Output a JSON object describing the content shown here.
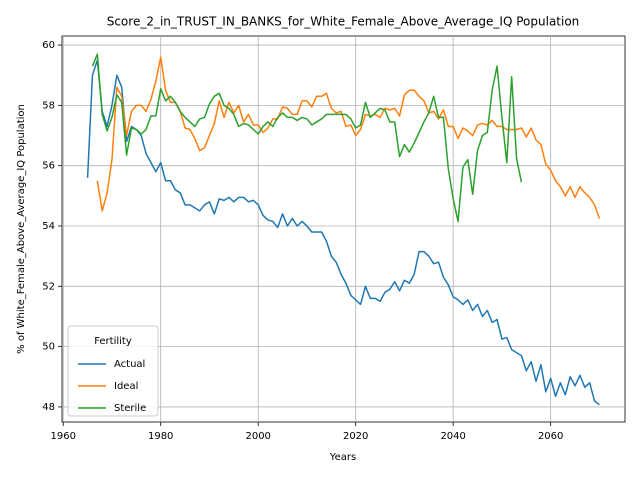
{
  "chart_data": {
    "type": "line",
    "title": "Score_2_in_TRUST_IN_BANKS_for_White_Female_Above_Average_IQ Population",
    "xlabel": "Years",
    "ylabel": "% of White_Female_Above_Average_IQ Population",
    "legend_title": "Fertility",
    "legend_loc": "lower left",
    "grid": true,
    "xlim": [
      1959.75,
      2075.25
    ],
    "xticks": [
      1960,
      1980,
      2000,
      2020,
      2040,
      2060
    ],
    "ylim": [
      47.5,
      60.3
    ],
    "yticks": [
      48,
      50,
      52,
      54,
      56,
      58,
      60
    ],
    "x": [
      1965,
      1966,
      1967,
      1968,
      1969,
      1970,
      1971,
      1972,
      1973,
      1974,
      1975,
      1976,
      1977,
      1978,
      1979,
      1980,
      1981,
      1982,
      1983,
      1984,
      1985,
      1986,
      1987,
      1988,
      1989,
      1990,
      1991,
      1992,
      1993,
      1994,
      1995,
      1996,
      1997,
      1998,
      1999,
      2000,
      2001,
      2002,
      2003,
      2004,
      2005,
      2006,
      2007,
      2008,
      2009,
      2010,
      2011,
      2012,
      2013,
      2014,
      2015,
      2016,
      2017,
      2018,
      2019,
      2020,
      2021,
      2022,
      2023,
      2024,
      2025,
      2026,
      2027,
      2028,
      2029,
      2030,
      2031,
      2032,
      2033,
      2034,
      2035,
      2036,
      2037,
      2038,
      2039,
      2040,
      2041,
      2042,
      2043,
      2044,
      2045,
      2046,
      2047,
      2048,
      2049,
      2050,
      2051,
      2052,
      2053,
      2054,
      2055,
      2056,
      2057,
      2058,
      2059,
      2060,
      2061,
      2062,
      2063,
      2064,
      2065,
      2066,
      2067,
      2068,
      2069,
      2070
    ],
    "series": [
      {
        "name": "Actual",
        "color": "#1f77b4",
        "values": [
          55.6,
          59.0,
          59.5,
          57.8,
          57.3,
          58.0,
          59.0,
          58.6,
          56.8,
          57.3,
          57.2,
          57.0,
          56.4,
          56.1,
          55.8,
          56.1,
          55.5,
          55.5,
          55.2,
          55.1,
          54.7,
          54.7,
          54.6,
          54.5,
          54.7,
          54.8,
          54.4,
          54.9,
          54.85,
          54.95,
          54.8,
          54.95,
          54.95,
          54.8,
          54.85,
          54.7,
          54.35,
          54.2,
          54.15,
          53.95,
          54.4,
          54.0,
          54.25,
          54.0,
          54.15,
          54.0,
          53.8,
          53.8,
          53.8,
          53.5,
          53.0,
          52.8,
          52.4,
          52.1,
          51.7,
          51.55,
          51.4,
          52.0,
          51.6,
          51.6,
          51.5,
          51.8,
          51.9,
          52.15,
          51.85,
          52.2,
          52.1,
          52.4,
          53.15,
          53.15,
          53.0,
          52.75,
          52.8,
          52.3,
          52.05,
          51.65,
          51.55,
          51.4,
          51.55,
          51.2,
          51.4,
          51.0,
          51.2,
          50.8,
          50.9,
          50.25,
          50.3,
          49.9,
          49.8,
          49.7,
          49.2,
          49.5,
          48.85,
          49.4,
          48.5,
          48.95,
          48.35,
          48.8,
          48.4,
          49.0,
          48.7,
          49.05,
          48.65,
          48.8,
          48.2,
          48.07
        ]
      },
      {
        "name": "Ideal",
        "color": "#ff7f0e",
        "values": [
          null,
          null,
          55.5,
          54.5,
          55.1,
          56.2,
          58.6,
          58.3,
          57.0,
          57.8,
          58.0,
          58.0,
          57.8,
          58.2,
          58.8,
          59.6,
          58.5,
          58.1,
          58.1,
          57.8,
          57.25,
          57.2,
          56.9,
          56.5,
          56.6,
          57.0,
          57.4,
          58.15,
          57.6,
          58.1,
          57.75,
          58.0,
          57.45,
          57.7,
          57.35,
          57.35,
          57.1,
          57.25,
          57.55,
          57.55,
          57.95,
          57.9,
          57.7,
          57.7,
          58.15,
          58.15,
          57.95,
          58.3,
          58.3,
          58.4,
          57.9,
          57.75,
          57.8,
          57.3,
          57.35,
          57.0,
          57.2,
          57.7,
          57.65,
          57.7,
          57.6,
          57.9,
          57.85,
          57.9,
          57.65,
          58.35,
          58.5,
          58.5,
          58.3,
          58.15,
          57.75,
          57.8,
          57.55,
          57.85,
          57.3,
          57.3,
          56.9,
          57.25,
          57.15,
          57.0,
          57.35,
          57.4,
          57.35,
          57.5,
          57.3,
          57.3,
          57.2,
          57.2,
          57.2,
          57.25,
          56.95,
          57.25,
          56.85,
          56.7,
          56.05,
          55.85,
          55.5,
          55.3,
          55.0,
          55.3,
          54.95,
          55.3,
          55.1,
          54.95,
          54.7,
          54.25
        ]
      },
      {
        "name": "Sterile",
        "color": "#2ca02c",
        "values": [
          null,
          59.3,
          59.7,
          57.7,
          57.15,
          57.6,
          58.35,
          58.1,
          56.35,
          57.25,
          57.2,
          57.05,
          57.2,
          57.65,
          57.65,
          58.55,
          58.15,
          58.3,
          58.1,
          57.8,
          57.6,
          57.45,
          57.3,
          57.55,
          57.6,
          58.05,
          58.3,
          58.4,
          58.0,
          57.9,
          57.7,
          57.3,
          57.4,
          57.35,
          57.2,
          57.05,
          57.3,
          57.45,
          57.3,
          57.6,
          57.75,
          57.6,
          57.6,
          57.5,
          57.6,
          57.55,
          57.35,
          57.45,
          57.55,
          57.7,
          57.7,
          57.7,
          57.7,
          57.7,
          57.55,
          57.25,
          57.35,
          58.1,
          57.6,
          57.75,
          57.9,
          57.85,
          57.45,
          57.45,
          56.3,
          56.7,
          56.45,
          56.75,
          57.1,
          57.45,
          57.75,
          58.3,
          57.6,
          57.6,
          55.9,
          54.9,
          54.15,
          55.95,
          56.2,
          55.05,
          56.5,
          57.0,
          57.1,
          58.5,
          59.3,
          57.6,
          56.1,
          58.95,
          56.25,
          55.45,
          null,
          null,
          null,
          null,
          null,
          null,
          null,
          null,
          null,
          null,
          null,
          null,
          null,
          null,
          null,
          null
        ]
      }
    ]
  }
}
